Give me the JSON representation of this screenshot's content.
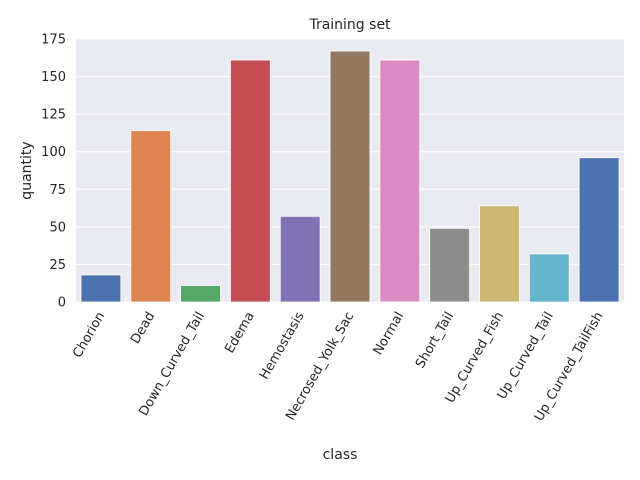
{
  "chart_data": {
    "type": "bar",
    "title": "Training set",
    "xlabel": "class",
    "ylabel": "quantity",
    "ylim": [
      0,
      175
    ],
    "yticks": [
      0,
      25,
      50,
      75,
      100,
      125,
      150,
      175
    ],
    "grid": true,
    "categories": [
      "Chorion",
      "Dead",
      "Down_Curved_Tail",
      "Edema",
      "Hemostasis",
      "Necrosed_Yolk_Sac",
      "Normal",
      "Short_Tail",
      "Up_Curved_Fish",
      "Up_Curved_Tail",
      "Up_Curved_TailFish"
    ],
    "values": [
      18,
      114,
      11,
      161,
      57,
      167,
      161,
      49,
      64,
      32,
      96
    ],
    "colors": [
      "#4c72b0",
      "#dd8452",
      "#55a868",
      "#c44e52",
      "#8172b3",
      "#937860",
      "#da8bc3",
      "#8c8c8c",
      "#ccb974",
      "#64b5cd",
      "#4c72b0"
    ],
    "background": "#eaeaf2"
  }
}
